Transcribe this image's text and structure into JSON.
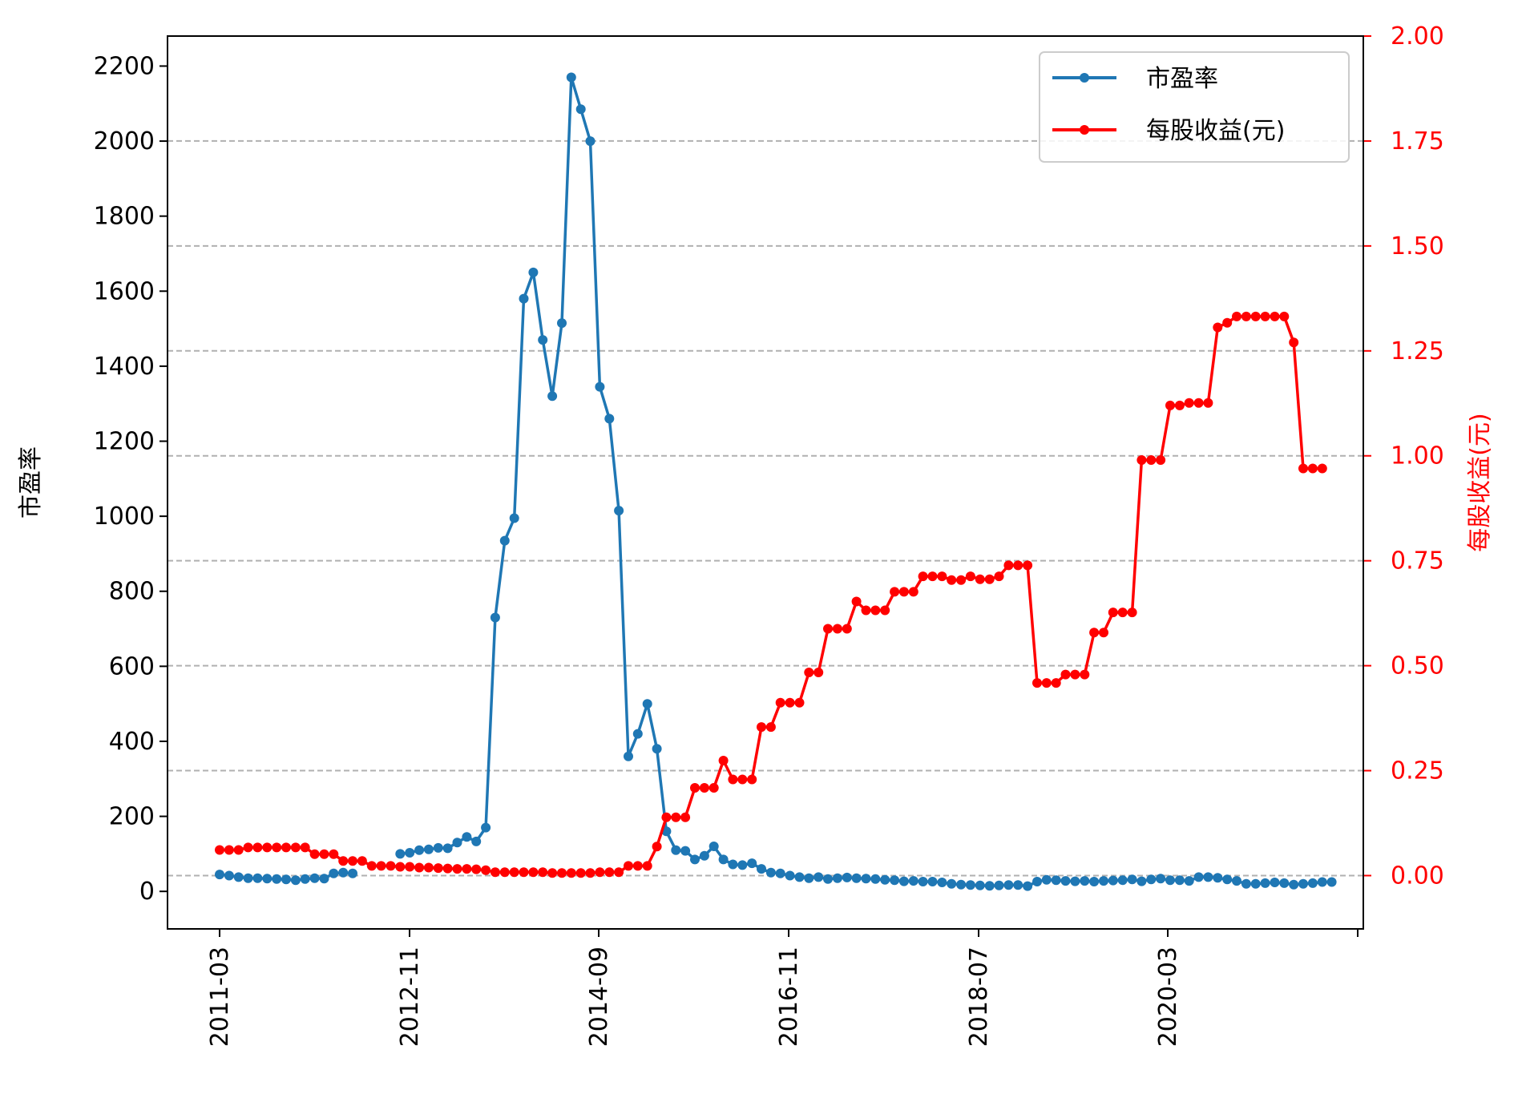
{
  "chart_data": {
    "type": "line",
    "title": "",
    "xlabel": "",
    "x_tick_labels": [
      "2011-03",
      "2012-11",
      "2014-09",
      "2016-11",
      "2018-07",
      "2020-03"
    ],
    "y_left": {
      "label": "市盈率",
      "ylim": [
        -100,
        2280
      ],
      "ticks": [
        0,
        200,
        400,
        600,
        800,
        1000,
        1200,
        1400,
        1600,
        1800,
        2000,
        2200
      ]
    },
    "y_right": {
      "label": "每股收益(元)",
      "ylim": [
        -0.127,
        2.0
      ],
      "ticks": [
        "0.00",
        "0.25",
        "0.50",
        "0.75",
        "1.00",
        "1.25",
        "1.50",
        "1.75",
        "2.00"
      ],
      "color": "#ff0000"
    },
    "grid": "horizontal dashed (right axis ticks)",
    "legend_position": "upper right",
    "series": [
      {
        "name": "市盈率",
        "axis": "left",
        "color": "#1f77b4",
        "values": [
          45,
          42,
          38,
          35,
          35,
          34,
          33,
          32,
          30,
          33,
          35,
          34,
          48,
          50,
          48,
          null,
          null,
          null,
          null,
          100,
          103,
          110,
          112,
          116,
          115,
          130,
          145,
          133,
          170,
          730,
          935,
          995,
          1580,
          1650,
          1470,
          1320,
          1515,
          2170,
          2085,
          2000,
          1345,
          1260,
          1015,
          360,
          420,
          500,
          380,
          160,
          110,
          108,
          85,
          95,
          120,
          85,
          72,
          70,
          75,
          60,
          50,
          48,
          42,
          38,
          35,
          38,
          33,
          35,
          37,
          35,
          34,
          33,
          31,
          30,
          27,
          28,
          26,
          26,
          24,
          20,
          18,
          17,
          16,
          15,
          16,
          17,
          17,
          14,
          26,
          31,
          30,
          28,
          27,
          28,
          26,
          28,
          29,
          30,
          32,
          27,
          32,
          34,
          30,
          30,
          28,
          38,
          38,
          36,
          32,
          28,
          20,
          20,
          22,
          24,
          22,
          18,
          20,
          22,
          25,
          25
        ]
      },
      {
        "name": "每股收益(元)",
        "axis": "right",
        "color": "#ff0000",
        "values": [
          0.061,
          0.061,
          0.061,
          0.067,
          0.067,
          0.067,
          0.067,
          0.067,
          0.067,
          0.067,
          0.051,
          0.051,
          0.051,
          0.035,
          0.035,
          0.035,
          0.023,
          0.023,
          0.023,
          0.021,
          0.021,
          0.019,
          0.019,
          0.018,
          0.017,
          0.016,
          0.016,
          0.015,
          0.013,
          0.008,
          0.008,
          0.008,
          0.008,
          0.008,
          0.008,
          0.006,
          0.006,
          0.006,
          0.006,
          0.006,
          0.008,
          0.008,
          0.008,
          0.023,
          0.023,
          0.023,
          0.069,
          0.139,
          0.139,
          0.139,
          0.209,
          0.209,
          0.209,
          0.274,
          0.229,
          0.229,
          0.229,
          0.354,
          0.354,
          0.412,
          0.412,
          0.412,
          0.484,
          0.484,
          0.588,
          0.588,
          0.588,
          0.653,
          0.632,
          0.632,
          0.632,
          0.676,
          0.676,
          0.676,
          0.713,
          0.713,
          0.713,
          0.704,
          0.704,
          0.713,
          0.706,
          0.706,
          0.713,
          0.739,
          0.739,
          0.739,
          0.459,
          0.459,
          0.459,
          0.479,
          0.479,
          0.479,
          0.579,
          0.579,
          0.627,
          0.627,
          0.627,
          0.99,
          0.99,
          0.99,
          1.12,
          1.12,
          1.126,
          1.126,
          1.126,
          1.306,
          1.317,
          1.332,
          1.332,
          1.332,
          1.332,
          1.332,
          1.332,
          1.27,
          0.97,
          0.97,
          0.97
        ]
      }
    ]
  }
}
